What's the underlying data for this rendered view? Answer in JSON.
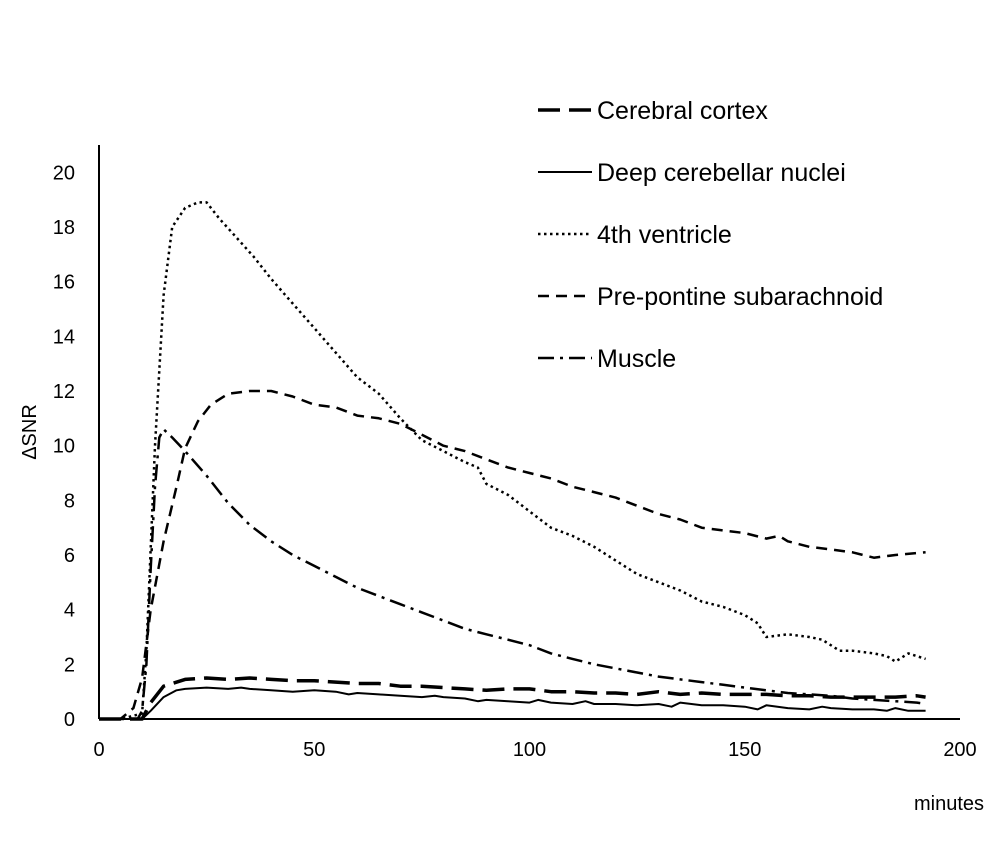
{
  "chart_data": {
    "type": "line",
    "title": "",
    "xlabel": "minutes",
    "ylabel": "ΔSNR",
    "xlim": [
      0,
      200
    ],
    "ylim": [
      0,
      21
    ],
    "x_ticks": [
      0,
      50,
      100,
      150,
      200
    ],
    "y_ticks": [
      0,
      2,
      4,
      6,
      8,
      10,
      12,
      14,
      16,
      18,
      20
    ],
    "grid": false,
    "legend_position": "top-right",
    "series": [
      {
        "name": "Cerebral cortex",
        "style": "long-dash",
        "width": 3.5,
        "points": [
          [
            0,
            0
          ],
          [
            5,
            0
          ],
          [
            9,
            0
          ],
          [
            10,
            0
          ],
          [
            12,
            0.6
          ],
          [
            15,
            1.2
          ],
          [
            20,
            1.45
          ],
          [
            25,
            1.5
          ],
          [
            30,
            1.45
          ],
          [
            35,
            1.5
          ],
          [
            40,
            1.45
          ],
          [
            45,
            1.4
          ],
          [
            50,
            1.4
          ],
          [
            55,
            1.35
          ],
          [
            60,
            1.3
          ],
          [
            65,
            1.3
          ],
          [
            70,
            1.2
          ],
          [
            75,
            1.2
          ],
          [
            80,
            1.15
          ],
          [
            85,
            1.1
          ],
          [
            90,
            1.05
          ],
          [
            95,
            1.1
          ],
          [
            100,
            1.1
          ],
          [
            105,
            1.0
          ],
          [
            110,
            1.0
          ],
          [
            115,
            0.95
          ],
          [
            120,
            0.95
          ],
          [
            125,
            0.9
          ],
          [
            130,
            1.0
          ],
          [
            135,
            0.9
          ],
          [
            140,
            0.95
          ],
          [
            145,
            0.9
          ],
          [
            150,
            0.9
          ],
          [
            155,
            0.9
          ],
          [
            160,
            0.85
          ],
          [
            165,
            0.85
          ],
          [
            170,
            0.8
          ],
          [
            175,
            0.8
          ],
          [
            180,
            0.8
          ],
          [
            185,
            0.8
          ],
          [
            190,
            0.85
          ],
          [
            192,
            0.8
          ]
        ]
      },
      {
        "name": "Deep cerebellar nuclei",
        "style": "solid",
        "width": 2,
        "points": [
          [
            0,
            0
          ],
          [
            9,
            0
          ],
          [
            10,
            0
          ],
          [
            12,
            0.3
          ],
          [
            15,
            0.8
          ],
          [
            18,
            1.05
          ],
          [
            20,
            1.1
          ],
          [
            25,
            1.15
          ],
          [
            30,
            1.1
          ],
          [
            33,
            1.15
          ],
          [
            35,
            1.1
          ],
          [
            40,
            1.05
          ],
          [
            45,
            1.0
          ],
          [
            50,
            1.05
          ],
          [
            55,
            1.0
          ],
          [
            58,
            0.9
          ],
          [
            60,
            0.95
          ],
          [
            65,
            0.9
          ],
          [
            70,
            0.85
          ],
          [
            75,
            0.8
          ],
          [
            78,
            0.85
          ],
          [
            80,
            0.8
          ],
          [
            85,
            0.75
          ],
          [
            88,
            0.65
          ],
          [
            90,
            0.7
          ],
          [
            95,
            0.65
          ],
          [
            100,
            0.6
          ],
          [
            102,
            0.7
          ],
          [
            105,
            0.6
          ],
          [
            110,
            0.55
          ],
          [
            113,
            0.65
          ],
          [
            115,
            0.55
          ],
          [
            120,
            0.55
          ],
          [
            125,
            0.5
          ],
          [
            130,
            0.55
          ],
          [
            133,
            0.45
          ],
          [
            135,
            0.6
          ],
          [
            140,
            0.5
          ],
          [
            145,
            0.5
          ],
          [
            150,
            0.45
          ],
          [
            153,
            0.35
          ],
          [
            155,
            0.5
          ],
          [
            160,
            0.4
          ],
          [
            165,
            0.35
          ],
          [
            168,
            0.45
          ],
          [
            170,
            0.4
          ],
          [
            175,
            0.35
          ],
          [
            180,
            0.35
          ],
          [
            183,
            0.3
          ],
          [
            185,
            0.4
          ],
          [
            188,
            0.3
          ],
          [
            190,
            0.3
          ],
          [
            192,
            0.3
          ]
        ]
      },
      {
        "name": "4th ventricle",
        "style": "dotted",
        "width": 2.5,
        "points": [
          [
            0,
            0
          ],
          [
            5,
            0
          ],
          [
            10,
            0.2
          ],
          [
            11,
            2.5
          ],
          [
            13,
            10
          ],
          [
            15,
            15.5
          ],
          [
            17,
            18.0
          ],
          [
            20,
            18.7
          ],
          [
            23,
            18.9
          ],
          [
            25,
            18.9
          ],
          [
            28,
            18.3
          ],
          [
            32,
            17.6
          ],
          [
            36,
            16.9
          ],
          [
            40,
            16.1
          ],
          [
            45,
            15.2
          ],
          [
            50,
            14.3
          ],
          [
            55,
            13.4
          ],
          [
            60,
            12.5
          ],
          [
            65,
            11.9
          ],
          [
            70,
            11.0
          ],
          [
            75,
            10.2
          ],
          [
            80,
            9.8
          ],
          [
            85,
            9.4
          ],
          [
            88,
            9.2
          ],
          [
            90,
            8.6
          ],
          [
            95,
            8.2
          ],
          [
            100,
            7.6
          ],
          [
            105,
            7.0
          ],
          [
            110,
            6.7
          ],
          [
            115,
            6.3
          ],
          [
            120,
            5.8
          ],
          [
            125,
            5.3
          ],
          [
            130,
            5.0
          ],
          [
            135,
            4.7
          ],
          [
            140,
            4.3
          ],
          [
            145,
            4.1
          ],
          [
            150,
            3.8
          ],
          [
            153,
            3.5
          ],
          [
            155,
            3.0
          ],
          [
            160,
            3.1
          ],
          [
            165,
            3.0
          ],
          [
            168,
            2.9
          ],
          [
            172,
            2.5
          ],
          [
            175,
            2.5
          ],
          [
            180,
            2.4
          ],
          [
            183,
            2.3
          ],
          [
            185,
            2.1
          ],
          [
            188,
            2.4
          ],
          [
            192,
            2.2
          ]
        ]
      },
      {
        "name": "Pre-pontine subarachnoid",
        "style": "dashed",
        "width": 2.5,
        "points": [
          [
            0,
            0
          ],
          [
            5,
            0
          ],
          [
            8,
            0.4
          ],
          [
            10,
            1.5
          ],
          [
            12,
            4.0
          ],
          [
            15,
            6.5
          ],
          [
            18,
            8.5
          ],
          [
            20,
            9.9
          ],
          [
            23,
            10.9
          ],
          [
            26,
            11.5
          ],
          [
            30,
            11.9
          ],
          [
            35,
            12.0
          ],
          [
            40,
            12.0
          ],
          [
            45,
            11.8
          ],
          [
            50,
            11.5
          ],
          [
            55,
            11.4
          ],
          [
            60,
            11.1
          ],
          [
            65,
            11.0
          ],
          [
            70,
            10.8
          ],
          [
            75,
            10.4
          ],
          [
            80,
            10.0
          ],
          [
            85,
            9.8
          ],
          [
            90,
            9.5
          ],
          [
            95,
            9.2
          ],
          [
            100,
            9.0
          ],
          [
            105,
            8.8
          ],
          [
            110,
            8.5
          ],
          [
            115,
            8.3
          ],
          [
            120,
            8.1
          ],
          [
            125,
            7.8
          ],
          [
            130,
            7.5
          ],
          [
            135,
            7.3
          ],
          [
            140,
            7.0
          ],
          [
            145,
            6.9
          ],
          [
            150,
            6.8
          ],
          [
            155,
            6.6
          ],
          [
            158,
            6.7
          ],
          [
            160,
            6.5
          ],
          [
            165,
            6.3
          ],
          [
            170,
            6.2
          ],
          [
            175,
            6.1
          ],
          [
            180,
            5.9
          ],
          [
            185,
            6.0
          ],
          [
            192,
            6.1
          ]
        ]
      },
      {
        "name": "Muscle",
        "style": "dash-dot",
        "width": 2.5,
        "points": [
          [
            0,
            0
          ],
          [
            9,
            0
          ],
          [
            10,
            0.3
          ],
          [
            11,
            2.0
          ],
          [
            12,
            5.5
          ],
          [
            13,
            8.5
          ],
          [
            14,
            10.3
          ],
          [
            15,
            10.6
          ],
          [
            17,
            10.3
          ],
          [
            20,
            9.8
          ],
          [
            25,
            8.9
          ],
          [
            30,
            7.9
          ],
          [
            35,
            7.1
          ],
          [
            40,
            6.5
          ],
          [
            45,
            6.0
          ],
          [
            50,
            5.6
          ],
          [
            55,
            5.2
          ],
          [
            60,
            4.8
          ],
          [
            65,
            4.5
          ],
          [
            70,
            4.2
          ],
          [
            75,
            3.9
          ],
          [
            80,
            3.6
          ],
          [
            85,
            3.3
          ],
          [
            90,
            3.1
          ],
          [
            95,
            2.9
          ],
          [
            100,
            2.7
          ],
          [
            105,
            2.4
          ],
          [
            110,
            2.2
          ],
          [
            115,
            2.0
          ],
          [
            120,
            1.85
          ],
          [
            125,
            1.7
          ],
          [
            130,
            1.55
          ],
          [
            135,
            1.45
          ],
          [
            140,
            1.35
          ],
          [
            145,
            1.25
          ],
          [
            150,
            1.15
          ],
          [
            155,
            1.05
          ],
          [
            160,
            0.95
          ],
          [
            165,
            0.9
          ],
          [
            170,
            0.85
          ],
          [
            175,
            0.75
          ],
          [
            180,
            0.7
          ],
          [
            185,
            0.65
          ],
          [
            190,
            0.6
          ],
          [
            192,
            0.55
          ]
        ]
      }
    ]
  }
}
